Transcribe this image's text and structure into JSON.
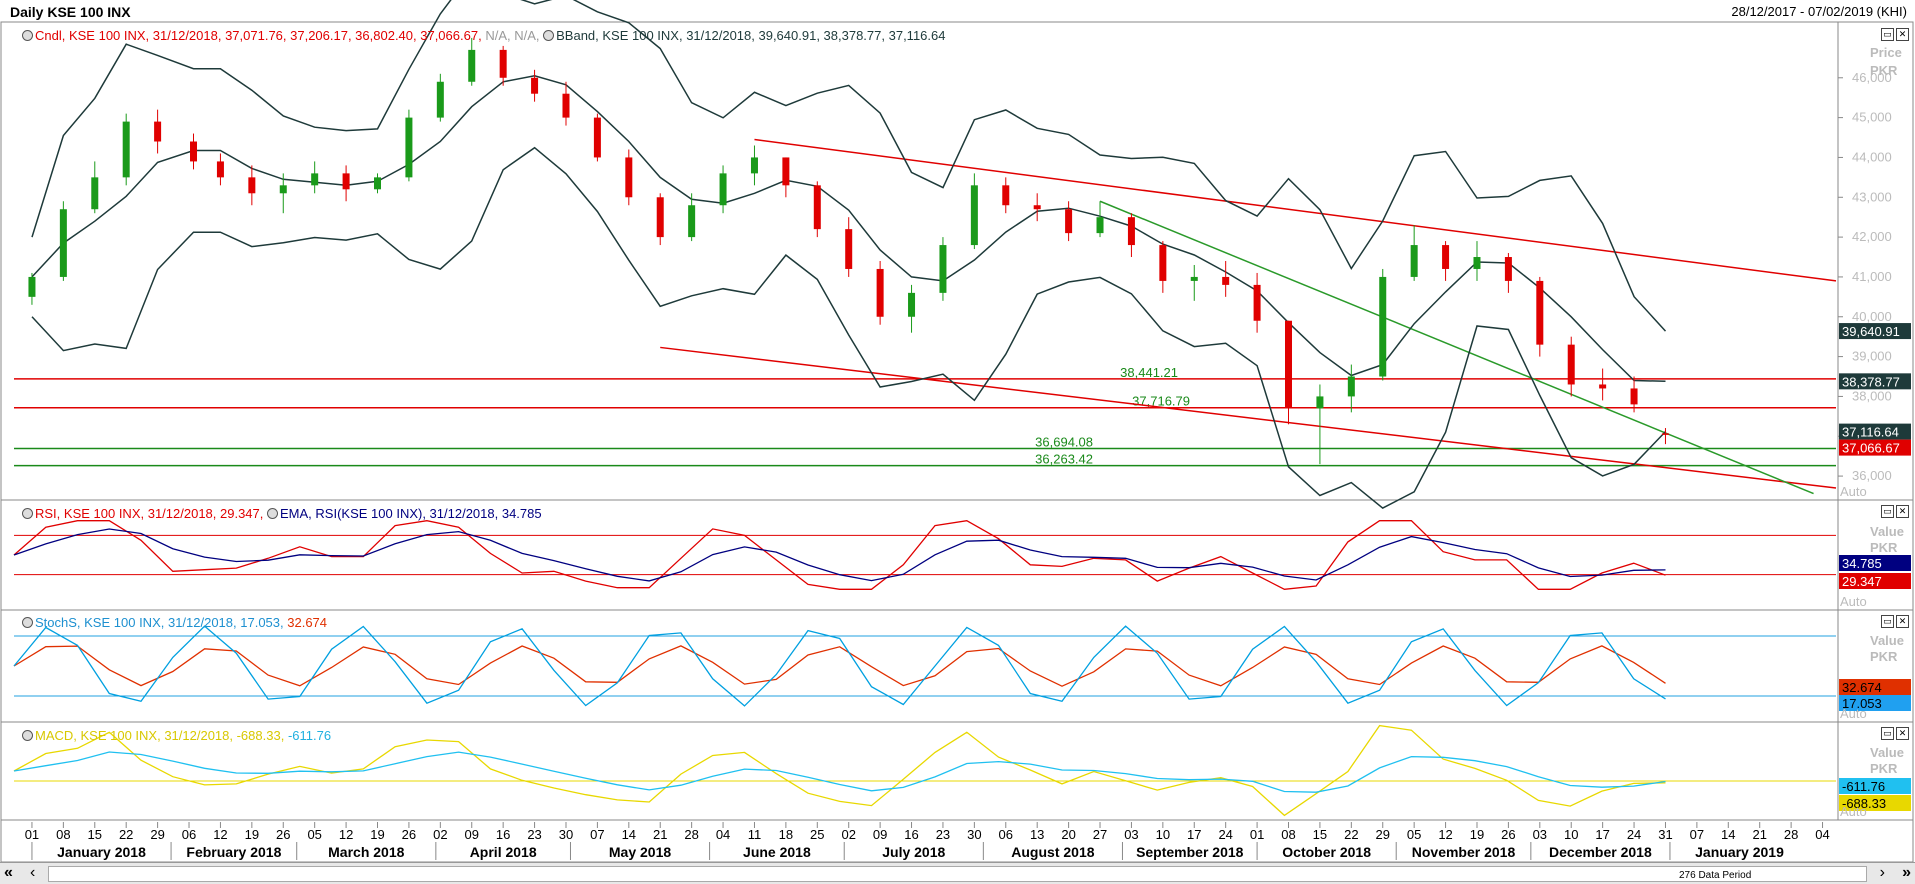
{
  "header": {
    "title": "Daily KSE 100 INX",
    "range": "28/12/2017 - 07/02/2019 (KHI)"
  },
  "legends": {
    "candle": "Cndl, KSE 100 INX, 31/12/2018, 37,071.76, 37,206.17, 36,802.40, 37,066.67,",
    "candle_na": "N/A, N/A,",
    "bband": "BBand, KSE 100 INX, 31/12/2018, 39,640.91, 38,378.77, 37,116.64",
    "rsi": "RSI, KSE 100 INX, 31/12/2018, 29.347,",
    "ema": "EMA, RSI(KSE 100 INX), 31/12/2018, 34.785",
    "stoch_name": "StochS, KSE 100 INX, 31/12/2018, 17.053,",
    "stoch_d": "32.674",
    "macd_name": "MACD, KSE 100 INX, 31/12/2018, -688.33,",
    "macd_signal": "-611.76"
  },
  "axis_titles": {
    "price": [
      "Price",
      "PKR"
    ],
    "rsi": [
      "Value",
      "PKR"
    ],
    "stoch": [
      "Value",
      "PKR"
    ],
    "macd": [
      "Value",
      "PKR"
    ],
    "auto": "Auto"
  },
  "last_value_badges": {
    "bb_upper": "39,640.91",
    "bb_mid": "38,378.77",
    "bb_lower": "37,116.64",
    "close": "37,066.67",
    "ema": "34.785",
    "rsi": "29.347",
    "stoch_d": "32.674",
    "stoch_k": "17.053",
    "macd_signal": "-611.76",
    "macd": "-688.33"
  },
  "level_labels": {
    "r1": "38,441.21",
    "r2": "37,716.79",
    "s1": "36,694.08",
    "s2": "36,263.42"
  },
  "footer": {
    "data_period": "276 Data Period",
    "scroll_left": "«",
    "scroll_right": "»",
    "scroll_prev": "‹",
    "scroll_next": "›"
  },
  "colors": {
    "up": "#1a9a1a",
    "down": "#e00000",
    "bband": "#1e3a3a",
    "rsi": "#e00000",
    "ema": "#000080",
    "stoch_k": "#00a0e0",
    "stoch_d": "#e03000",
    "macd": "#e8d800",
    "macd_signal": "#20c0f0",
    "trend_red": "#e00000",
    "trend_green": "#2a9a2a"
  },
  "chart_data": {
    "type": "candlestick",
    "price_axis": {
      "ticks": [
        36000,
        37000,
        38000,
        39000,
        40000,
        41000,
        42000,
        43000,
        44000,
        45000,
        46000
      ],
      "range": [
        35500,
        47300
      ]
    },
    "rsi_axis": {
      "guide_levels": [
        30,
        70
      ]
    },
    "stoch_axis": {
      "guide_levels": [
        20,
        80
      ]
    },
    "horizontal_levels": [
      38441.21,
      37716.79,
      36694.08,
      36263.42
    ],
    "trend_lines": [
      {
        "color": "red",
        "from": [
          "2018-06-11",
          44450
        ],
        "to": [
          "2019-02-07",
          40900
        ]
      },
      {
        "color": "red",
        "from": [
          "2018-05-21",
          39230
        ],
        "to": [
          "2019-02-07",
          35700
        ]
      },
      {
        "color": "green",
        "from": [
          "2018-08-27",
          42900
        ],
        "to": [
          "2019-02-02",
          35560
        ]
      }
    ],
    "day_ticks": [
      "01",
      "08",
      "15",
      "22",
      "29",
      "06",
      "12",
      "19",
      "26",
      "05",
      "12",
      "19",
      "26",
      "02",
      "09",
      "16",
      "23",
      "30",
      "07",
      "14",
      "21",
      "28",
      "04",
      "11",
      "18",
      "25",
      "02",
      "09",
      "16",
      "23",
      "30",
      "06",
      "13",
      "20",
      "27",
      "03",
      "10",
      "17",
      "24",
      "01",
      "08",
      "15",
      "22",
      "29",
      "05",
      "12",
      "19",
      "26",
      "03",
      "10",
      "17",
      "24",
      "31",
      "07",
      "14",
      "21",
      "28",
      "04"
    ],
    "months": [
      "January 2018",
      "February 2018",
      "March 2018",
      "April 2018",
      "May 2018",
      "June 2018",
      "July 2018",
      "August 2018",
      "September 2018",
      "October 2018",
      "November 2018",
      "December 2018",
      "January 2019"
    ],
    "ohlc_weekly_approx": [
      {
        "d": "2018-01-01",
        "o": 40500,
        "h": 41100,
        "l": 40300,
        "c": 41000
      },
      {
        "d": "2018-01-08",
        "o": 41000,
        "h": 42900,
        "l": 40900,
        "c": 42700
      },
      {
        "d": "2018-01-15",
        "o": 42700,
        "h": 43900,
        "l": 42600,
        "c": 43500
      },
      {
        "d": "2018-01-22",
        "o": 43500,
        "h": 45100,
        "l": 43300,
        "c": 44900
      },
      {
        "d": "2018-01-29",
        "o": 44900,
        "h": 45200,
        "l": 44100,
        "c": 44400
      },
      {
        "d": "2018-02-06",
        "o": 44400,
        "h": 44600,
        "l": 43700,
        "c": 43900
      },
      {
        "d": "2018-02-12",
        "o": 43900,
        "h": 44100,
        "l": 43300,
        "c": 43500
      },
      {
        "d": "2018-02-19",
        "o": 43500,
        "h": 43800,
        "l": 42800,
        "c": 43100
      },
      {
        "d": "2018-02-26",
        "o": 43100,
        "h": 43600,
        "l": 42600,
        "c": 43300
      },
      {
        "d": "2018-03-05",
        "o": 43300,
        "h": 43900,
        "l": 43100,
        "c": 43600
      },
      {
        "d": "2018-03-12",
        "o": 43600,
        "h": 43800,
        "l": 42900,
        "c": 43200
      },
      {
        "d": "2018-03-19",
        "o": 43200,
        "h": 43600,
        "l": 43100,
        "c": 43500
      },
      {
        "d": "2018-03-26",
        "o": 43500,
        "h": 45200,
        "l": 43400,
        "c": 45000
      },
      {
        "d": "2018-04-02",
        "o": 45000,
        "h": 46100,
        "l": 44900,
        "c": 45900
      },
      {
        "d": "2018-04-09",
        "o": 45900,
        "h": 47000,
        "l": 45800,
        "c": 46700
      },
      {
        "d": "2018-04-16",
        "o": 46700,
        "h": 46800,
        "l": 45800,
        "c": 46000
      },
      {
        "d": "2018-04-23",
        "o": 46000,
        "h": 46200,
        "l": 45400,
        "c": 45600
      },
      {
        "d": "2018-04-30",
        "o": 45600,
        "h": 45900,
        "l": 44800,
        "c": 45000
      },
      {
        "d": "2018-05-07",
        "o": 45000,
        "h": 45100,
        "l": 43900,
        "c": 44000
      },
      {
        "d": "2018-05-14",
        "o": 44000,
        "h": 44200,
        "l": 42800,
        "c": 43000
      },
      {
        "d": "2018-05-21",
        "o": 43000,
        "h": 43100,
        "l": 41800,
        "c": 42000
      },
      {
        "d": "2018-05-28",
        "o": 42000,
        "h": 43100,
        "l": 41900,
        "c": 42800
      },
      {
        "d": "2018-06-04",
        "o": 42800,
        "h": 43800,
        "l": 42600,
        "c": 43600
      },
      {
        "d": "2018-06-11",
        "o": 43600,
        "h": 44300,
        "l": 43300,
        "c": 44000
      },
      {
        "d": "2018-06-18",
        "o": 44000,
        "h": 44000,
        "l": 43000,
        "c": 43300
      },
      {
        "d": "2018-06-25",
        "o": 43300,
        "h": 43400,
        "l": 42000,
        "c": 42200
      },
      {
        "d": "2018-07-02",
        "o": 42200,
        "h": 42500,
        "l": 41000,
        "c": 41200
      },
      {
        "d": "2018-07-09",
        "o": 41200,
        "h": 41400,
        "l": 39800,
        "c": 40000
      },
      {
        "d": "2018-07-16",
        "o": 40000,
        "h": 40800,
        "l": 39600,
        "c": 40600
      },
      {
        "d": "2018-07-23",
        "o": 40600,
        "h": 42000,
        "l": 40400,
        "c": 41800
      },
      {
        "d": "2018-07-30",
        "o": 41800,
        "h": 43600,
        "l": 41700,
        "c": 43300
      },
      {
        "d": "2018-08-06",
        "o": 43300,
        "h": 43500,
        "l": 42600,
        "c": 42800
      },
      {
        "d": "2018-08-13",
        "o": 42800,
        "h": 43100,
        "l": 42400,
        "c": 42700
      },
      {
        "d": "2018-08-20",
        "o": 42700,
        "h": 42900,
        "l": 41900,
        "c": 42100
      },
      {
        "d": "2018-08-27",
        "o": 42100,
        "h": 42900,
        "l": 42000,
        "c": 42500
      },
      {
        "d": "2018-09-03",
        "o": 42500,
        "h": 42600,
        "l": 41500,
        "c": 41800
      },
      {
        "d": "2018-09-10",
        "o": 41800,
        "h": 41900,
        "l": 40600,
        "c": 40900
      },
      {
        "d": "2018-09-17",
        "o": 40900,
        "h": 41300,
        "l": 40400,
        "c": 41000
      },
      {
        "d": "2018-09-24",
        "o": 41000,
        "h": 41400,
        "l": 40500,
        "c": 40800
      },
      {
        "d": "2018-10-01",
        "o": 40800,
        "h": 41100,
        "l": 39600,
        "c": 39900
      },
      {
        "d": "2018-10-08",
        "o": 39900,
        "h": 39900,
        "l": 37300,
        "c": 37700
      },
      {
        "d": "2018-10-15",
        "o": 37700,
        "h": 38300,
        "l": 36300,
        "c": 38000
      },
      {
        "d": "2018-10-22",
        "o": 38000,
        "h": 38800,
        "l": 37600,
        "c": 38500
      },
      {
        "d": "2018-10-29",
        "o": 38500,
        "h": 41200,
        "l": 38400,
        "c": 41000
      },
      {
        "d": "2018-11-05",
        "o": 41000,
        "h": 42300,
        "l": 40900,
        "c": 41800
      },
      {
        "d": "2018-11-12",
        "o": 41800,
        "h": 41900,
        "l": 40900,
        "c": 41200
      },
      {
        "d": "2018-11-19",
        "o": 41200,
        "h": 41900,
        "l": 40900,
        "c": 41500
      },
      {
        "d": "2018-11-26",
        "o": 41500,
        "h": 41600,
        "l": 40600,
        "c": 40900
      },
      {
        "d": "2018-12-03",
        "o": 40900,
        "h": 41000,
        "l": 39000,
        "c": 39300
      },
      {
        "d": "2018-12-10",
        "o": 39300,
        "h": 39500,
        "l": 38000,
        "c": 38300
      },
      {
        "d": "2018-12-17",
        "o": 38300,
        "h": 38700,
        "l": 37900,
        "c": 38200
      },
      {
        "d": "2018-12-24",
        "o": 38200,
        "h": 38500,
        "l": 37600,
        "c": 37800
      },
      {
        "d": "2018-12-31",
        "o": 37071.76,
        "h": 37206.17,
        "l": 36802.4,
        "c": 37066.67
      }
    ],
    "bband_last": {
      "upper": 39640.91,
      "middle": 38378.77,
      "lower": 37116.64
    },
    "rsi_last": 29.347,
    "ema_rsi_last": 34.785,
    "stoch_k_last": 17.053,
    "stoch_d_last": 32.674,
    "macd_last": -688.33,
    "macd_signal_last": -611.76
  }
}
